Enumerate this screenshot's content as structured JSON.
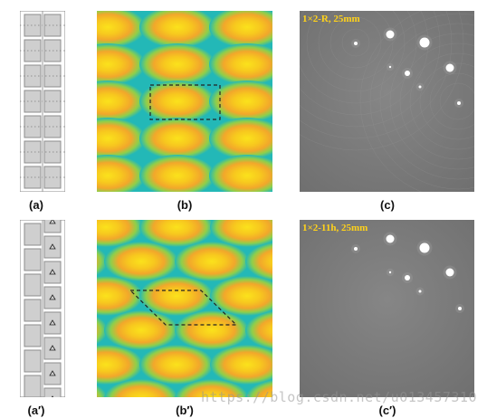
{
  "panels": {
    "a": {
      "label": "(a)"
    },
    "b": {
      "label": "(b)"
    },
    "c": {
      "label": "(c)",
      "annotation": "1×2-R, 25mm"
    },
    "a_prime": {
      "label": "(a′)"
    },
    "b_prime": {
      "label": "(b′)"
    },
    "c_prime": {
      "label": "(c′)",
      "annotation": "1×2-11h, 25mm"
    }
  },
  "watermark": "https://blog.csdn.net/u013457310",
  "colors": {
    "field_yellow": "#f7c81e",
    "field_orange": "#f2a72b",
    "field_green": "#8fcf4a",
    "field_cyan": "#23b8b7",
    "field_blue": "#2aa2c9",
    "ct_gray": "#7e7e7e",
    "annotation_yellow": "#ffd21a"
  }
}
